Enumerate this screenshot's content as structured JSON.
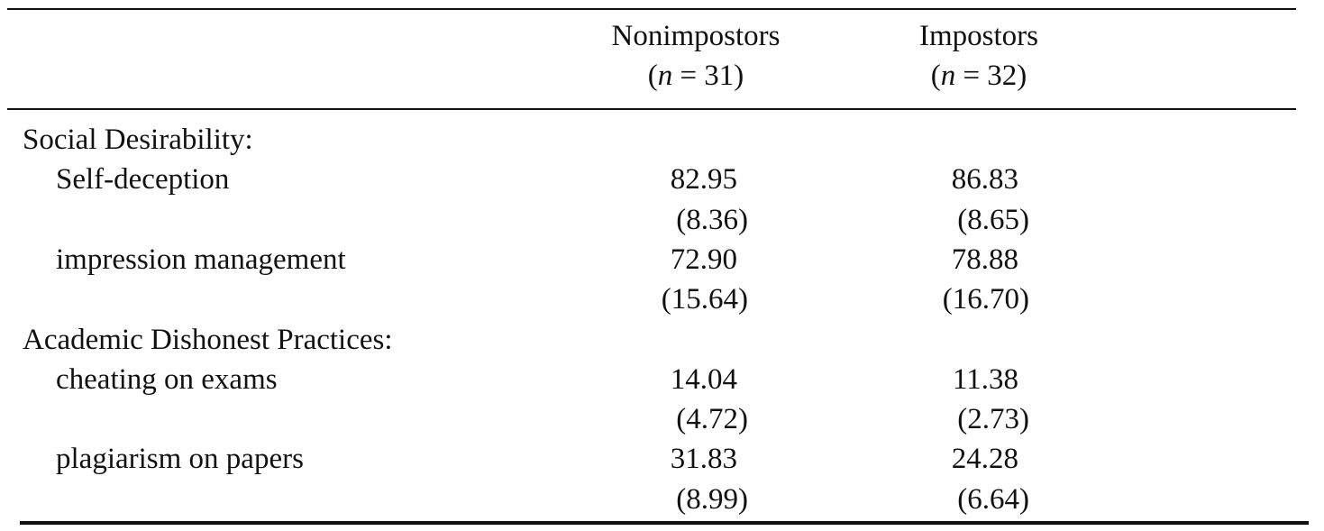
{
  "table": {
    "header": [
      {
        "name": "Nonimpostors",
        "n": {
          "open": "(",
          "var": "n",
          "rest": " = 31)"
        }
      },
      {
        "name": "Impostors",
        "n": {
          "open": "(",
          "var": "n",
          "rest": " = 32)"
        }
      }
    ],
    "sections": [
      {
        "label": "Social Desirability:",
        "rows": [
          {
            "label": "Self-deception",
            "values": [
              {
                "mean": "82.95",
                "sd": "(8.36)"
              },
              {
                "mean": "86.83",
                "sd": "(8.65)"
              }
            ]
          },
          {
            "label": "impression management",
            "values": [
              {
                "mean": "72.90",
                "sd": "(15.64)"
              },
              {
                "mean": "78.88",
                "sd": "(16.70)"
              }
            ]
          }
        ]
      },
      {
        "label": "Academic Dishonest Practices:",
        "rows": [
          {
            "label": "cheating on exams",
            "values": [
              {
                "mean": "14.04",
                "sd": "(4.72)"
              },
              {
                "mean": "11.38",
                "sd": "(2.73)"
              }
            ]
          },
          {
            "label": "plagiarism on papers",
            "values": [
              {
                "mean": "31.83",
                "sd": "(8.99)"
              },
              {
                "mean": "24.28",
                "sd": "(6.64)"
              }
            ]
          }
        ]
      }
    ]
  }
}
